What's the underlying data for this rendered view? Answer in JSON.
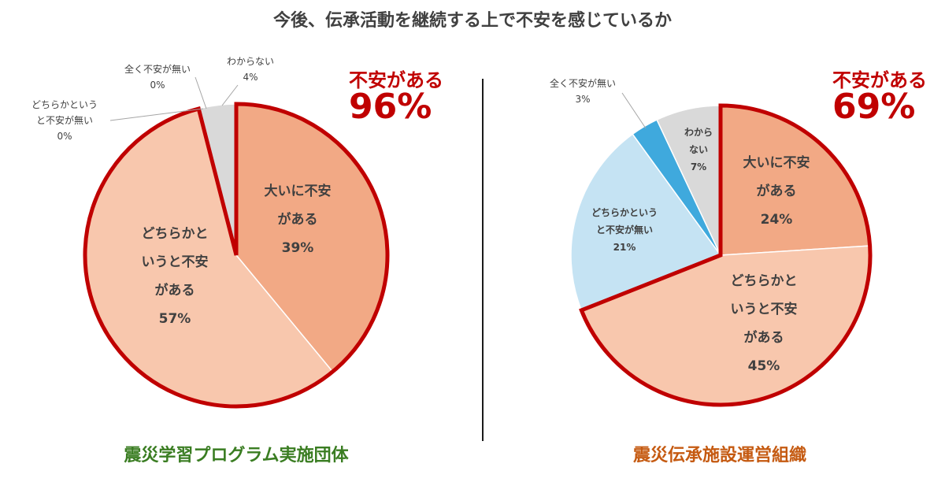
{
  "colors": {
    "title": "#404040",
    "accent_red": "#c00000",
    "left_caption": "#3a7d22",
    "right_caption": "#c55a11",
    "very_anxious": "#f2a985",
    "somewhat_anxious": "#f8c7ad",
    "somewhat_not": "#c5e3f3",
    "not_at_all": "#3fa9dd",
    "unknown": "#d9d9d9",
    "text_dark": "#404040"
  },
  "title": "今後、伝承活動を継続する上で不安を感じているか",
  "chart_data": [
    {
      "type": "pie",
      "name": "震災学習プログラム実施団体",
      "caption": "震災学習プログラム実施団体",
      "caption_color": "#3a7d22",
      "callout": {
        "label": "不安がある",
        "value": "96%"
      },
      "slices": [
        {
          "label": "大いに不安がある",
          "label_lines": [
            "大いに不安",
            "がある"
          ],
          "value": 39,
          "value_text": "39%",
          "color": "#f2a985",
          "anxious": true
        },
        {
          "label": "どちらかというと不安がある",
          "label_lines": [
            "どちらかと",
            "いうと不安",
            "がある"
          ],
          "value": 57,
          "value_text": "57%",
          "color": "#f8c7ad",
          "anxious": true
        },
        {
          "label": "どちらかというと不安が無い",
          "label_lines": [
            "どちらかというと不安が無い"
          ],
          "value": 0,
          "value_text": "0%",
          "color": "#c5e3f3",
          "anxious": false
        },
        {
          "label": "全く不安が無い",
          "label_lines": [
            "全く不安が無い"
          ],
          "value": 0,
          "value_text": "0%",
          "color": "#3fa9dd",
          "anxious": false
        },
        {
          "label": "わからない",
          "label_lines": [
            "わからない"
          ],
          "value": 4,
          "value_text": "4%",
          "color": "#d9d9d9",
          "anxious": false
        }
      ]
    },
    {
      "type": "pie",
      "name": "震災伝承施設運営組織",
      "caption": "震災伝承施設運営組織",
      "caption_color": "#c55a11",
      "callout": {
        "label": "不安がある",
        "value": "69%"
      },
      "slices": [
        {
          "label": "大いに不安がある",
          "label_lines": [
            "大いに不安",
            "がある"
          ],
          "value": 24,
          "value_text": "24%",
          "color": "#f2a985",
          "anxious": true
        },
        {
          "label": "どちらかというと不安がある",
          "label_lines": [
            "どちらかと",
            "いうと不安",
            "がある"
          ],
          "value": 45,
          "value_text": "45%",
          "color": "#f8c7ad",
          "anxious": true
        },
        {
          "label": "どちらかというと不安が無い",
          "label_lines": [
            "どちらかという",
            "と不安が無い"
          ],
          "value": 21,
          "value_text": "21%",
          "color": "#c5e3f3",
          "anxious": false
        },
        {
          "label": "全く不安が無い",
          "label_lines": [
            "全く不安が無い"
          ],
          "value": 3,
          "value_text": "3%",
          "color": "#3fa9dd",
          "anxious": false
        },
        {
          "label": "わからない",
          "label_lines": [
            "わから",
            "ない"
          ],
          "value": 7,
          "value_text": "7%",
          "color": "#d9d9d9",
          "anxious": false
        }
      ]
    }
  ]
}
